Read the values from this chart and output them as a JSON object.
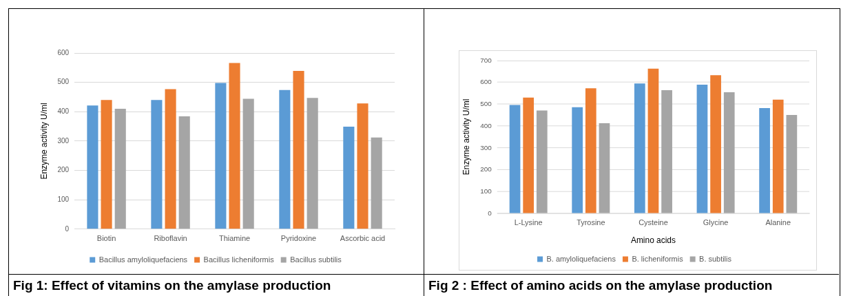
{
  "chart_data": [
    {
      "type": "bar",
      "ylabel": "Enzyme activity U/ml",
      "categories": [
        "Biotin",
        "Riboflavin",
        "Thiamine",
        "Pyridoxine",
        "Ascorbic acid"
      ],
      "series": [
        {
          "name": "Bacillus amyloliquefaciens",
          "color": "#5b9bd5",
          "values": [
            421,
            440,
            498,
            474,
            349
          ]
        },
        {
          "name": "Bacillus licheniformis",
          "color": "#ed7d31",
          "values": [
            440,
            477,
            566,
            539,
            428
          ]
        },
        {
          "name": "Bacillus subtilis",
          "color": "#a5a5a5",
          "values": [
            410,
            384,
            444,
            447,
            312
          ]
        }
      ],
      "ylim": [
        0,
        600
      ],
      "yticks": [
        0,
        100,
        200,
        300,
        400,
        500,
        600
      ],
      "grid": "y",
      "legend": "bottom",
      "annotations": [
        "Fig 1:  Effect of vitamins on the amylase production"
      ]
    },
    {
      "type": "bar",
      "xlabel": "Amino acids",
      "ylabel": "Enzyme activity U/ml",
      "categories": [
        "L-Lysine",
        "Tyrosine",
        "Cysteine",
        "Glycine",
        "Alanine"
      ],
      "series": [
        {
          "name": "B. amyloliquefaciens",
          "color": "#5b9bd5",
          "values": [
            496,
            486,
            595,
            589,
            482
          ]
        },
        {
          "name": "B. licheniformis",
          "color": "#ed7d31",
          "values": [
            530,
            573,
            663,
            633,
            521
          ]
        },
        {
          "name": "B. subtilis",
          "color": "#a5a5a5",
          "values": [
            471,
            413,
            564,
            555,
            451
          ]
        }
      ],
      "ylim": [
        0,
        700
      ],
      "yticks": [
        0,
        100,
        200,
        300,
        400,
        500,
        600,
        700
      ],
      "grid": "y",
      "legend": "bottom",
      "annotations": [
        "Fig 2 : Effect of amino acids on the amylase production"
      ]
    }
  ]
}
